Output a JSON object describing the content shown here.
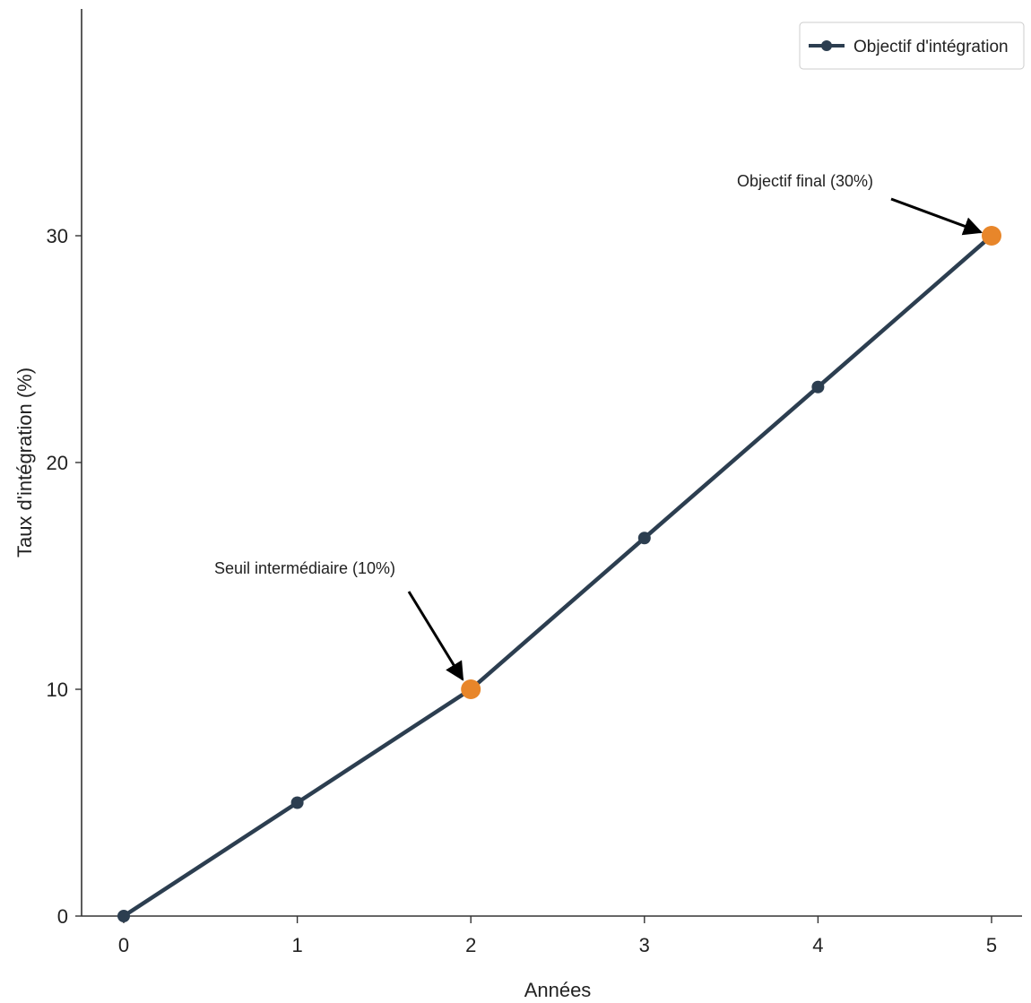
{
  "chart_data": {
    "type": "line",
    "x": [
      0,
      1,
      2,
      3,
      4,
      5
    ],
    "series": [
      {
        "name": "Objectif d'intégration",
        "values": [
          0,
          5,
          10,
          16.67,
          23.33,
          30
        ],
        "color": "#2c3e50"
      }
    ],
    "highlight_points": [
      {
        "x": 2,
        "y": 10,
        "label": "Seuil intermédiaire (10%)",
        "color": "#e8862a"
      },
      {
        "x": 5,
        "y": 30,
        "label": "Objectif final (30%)",
        "color": "#e8862a"
      }
    ],
    "xlabel": "Années",
    "ylabel": "Taux d'intégration (%)",
    "xticks": [
      "0",
      "1",
      "2",
      "3",
      "4",
      "5"
    ],
    "yticks": [
      "0",
      "10",
      "20",
      "30"
    ],
    "xlim": [
      -0.25,
      5.2
    ],
    "ylim": [
      0,
      40
    ],
    "grid": false,
    "legend_position": "top-right"
  }
}
